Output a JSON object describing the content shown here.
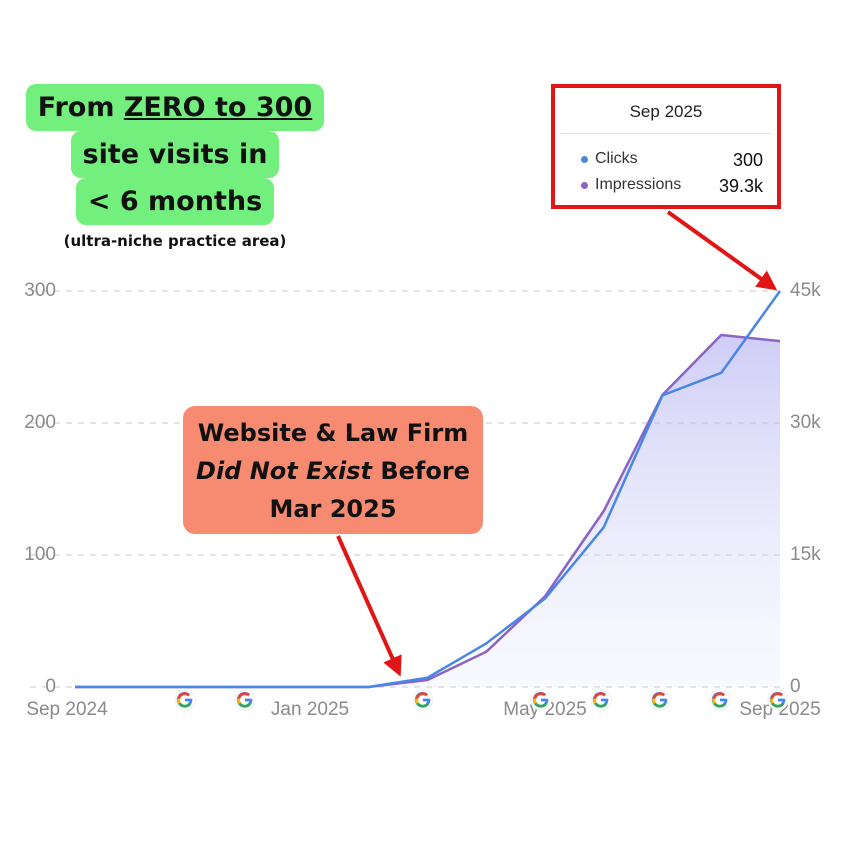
{
  "chart_data": {
    "type": "line",
    "categories": [
      "Sep 2024",
      null,
      null,
      null,
      "Jan 2025",
      null,
      null,
      null,
      "May 2025",
      null,
      null,
      null,
      "Sep 2025"
    ],
    "series": [
      {
        "name": "Clicks",
        "color": "#4a86e8",
        "values": [
          0,
          0,
          0,
          0,
          0,
          0,
          7,
          33,
          67,
          121,
          221,
          238,
          300
        ]
      },
      {
        "name": "Impressions",
        "color": "#8a63c9",
        "axis": "y2",
        "values": [
          0,
          0,
          0,
          0,
          0,
          0,
          800,
          4000,
          10300,
          20000,
          33200,
          40000,
          39300
        ]
      }
    ],
    "ylim": [
      0,
      300
    ],
    "yticks": [
      0,
      100,
      200,
      300
    ],
    "y2lim": [
      0,
      45000
    ],
    "y2ticks": [
      0,
      {
        "value": 15000,
        "label": "15k"
      },
      {
        "value": 30000,
        "label": "30k"
      },
      {
        "value": 45000,
        "label": "45k"
      }
    ],
    "grid": true,
    "tooltip": {
      "title": "Sep 2025",
      "rows": [
        {
          "name": "Clicks",
          "value": 300
        },
        {
          "name": "Impressions",
          "value": "39.3k"
        }
      ]
    },
    "annotations": {
      "headline": {
        "line1": [
          "From",
          "ZERO to 300"
        ],
        "line2": "site visits in",
        "line3": "< 6 months"
      },
      "note": "(ultra-niche practice area)",
      "callout": {
        "line1": "Website & Law Firm",
        "line2": [
          "Did Not Exist",
          "Before"
        ],
        "line3": "Mar 2025"
      }
    }
  }
}
